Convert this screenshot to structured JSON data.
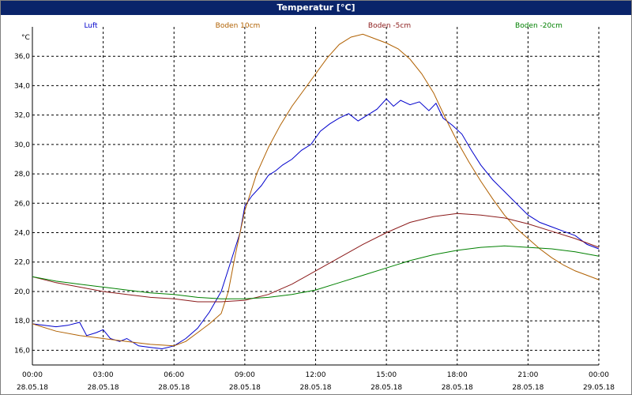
{
  "window": {
    "title": "Temperatur [°C]"
  },
  "chart_data": {
    "type": "line",
    "unit_label": "°C",
    "ylim": [
      15,
      38
    ],
    "xlim": [
      0,
      24
    ],
    "grid": true,
    "legend_placement": "top",
    "y_ticks": [
      "16,0",
      "18,0",
      "20,0",
      "22,0",
      "24,0",
      "26,0",
      "28,0",
      "30,0",
      "32,0",
      "34,0",
      "36,0"
    ],
    "x_ticks": [
      {
        "time": "00:00",
        "date": "28.05.18"
      },
      {
        "time": "03:00",
        "date": "28.05.18"
      },
      {
        "time": "06:00",
        "date": "28.05.18"
      },
      {
        "time": "09:00",
        "date": "28.05.18"
      },
      {
        "time": "12:00",
        "date": "28.05.18"
      },
      {
        "time": "15:00",
        "date": "28.05.18"
      },
      {
        "time": "18:00",
        "date": "28.05.18"
      },
      {
        "time": "21:00",
        "date": "28.05.18"
      },
      {
        "time": "00:00",
        "date": "29.05.18"
      }
    ],
    "series": [
      {
        "name": "Luft",
        "color": "#0000cc",
        "points": [
          [
            0,
            17.8
          ],
          [
            0.5,
            17.7
          ],
          [
            1,
            17.6
          ],
          [
            1.5,
            17.7
          ],
          [
            2,
            17.9
          ],
          [
            2.3,
            17.0
          ],
          [
            2.7,
            17.2
          ],
          [
            3,
            17.4
          ],
          [
            3.3,
            16.8
          ],
          [
            3.7,
            16.6
          ],
          [
            4,
            16.8
          ],
          [
            4.5,
            16.3
          ],
          [
            5,
            16.2
          ],
          [
            5.5,
            16.1
          ],
          [
            6,
            16.3
          ],
          [
            6.5,
            16.8
          ],
          [
            7,
            17.5
          ],
          [
            7.5,
            18.6
          ],
          [
            8,
            20.0
          ],
          [
            8.3,
            21.5
          ],
          [
            8.6,
            23.0
          ],
          [
            8.8,
            24.0
          ],
          [
            9,
            25.8
          ],
          [
            9.3,
            26.5
          ],
          [
            9.7,
            27.2
          ],
          [
            10,
            27.9
          ],
          [
            10.3,
            28.2
          ],
          [
            10.6,
            28.6
          ],
          [
            11,
            29.0
          ],
          [
            11.4,
            29.6
          ],
          [
            11.8,
            30.0
          ],
          [
            12.2,
            30.9
          ],
          [
            12.6,
            31.4
          ],
          [
            13,
            31.8
          ],
          [
            13.4,
            32.1
          ],
          [
            13.8,
            31.6
          ],
          [
            14.2,
            32.0
          ],
          [
            14.6,
            32.4
          ],
          [
            15,
            33.1
          ],
          [
            15.3,
            32.6
          ],
          [
            15.6,
            33.0
          ],
          [
            16,
            32.7
          ],
          [
            16.4,
            32.9
          ],
          [
            16.8,
            32.3
          ],
          [
            17.1,
            32.8
          ],
          [
            17.4,
            31.8
          ],
          [
            17.8,
            31.3
          ],
          [
            18.2,
            30.7
          ],
          [
            18.6,
            29.6
          ],
          [
            19,
            28.6
          ],
          [
            19.5,
            27.6
          ],
          [
            20,
            26.8
          ],
          [
            20.5,
            26.0
          ],
          [
            21,
            25.2
          ],
          [
            21.5,
            24.7
          ],
          [
            22,
            24.4
          ],
          [
            22.5,
            24.1
          ],
          [
            23,
            23.8
          ],
          [
            23.5,
            23.2
          ],
          [
            24,
            22.9
          ]
        ]
      },
      {
        "name": "Boden 10cm",
        "color": "#b06000",
        "points": [
          [
            0,
            17.8
          ],
          [
            1,
            17.3
          ],
          [
            2,
            17.0
          ],
          [
            3,
            16.8
          ],
          [
            4,
            16.6
          ],
          [
            5,
            16.4
          ],
          [
            6,
            16.3
          ],
          [
            6.5,
            16.6
          ],
          [
            7,
            17.2
          ],
          [
            7.5,
            17.8
          ],
          [
            8,
            18.5
          ],
          [
            8.3,
            20.0
          ],
          [
            8.6,
            22.5
          ],
          [
            9,
            25.5
          ],
          [
            9.5,
            28.0
          ],
          [
            10,
            29.8
          ],
          [
            10.5,
            31.3
          ],
          [
            11,
            32.6
          ],
          [
            11.5,
            33.7
          ],
          [
            12,
            34.8
          ],
          [
            12.5,
            35.9
          ],
          [
            13,
            36.8
          ],
          [
            13.5,
            37.3
          ],
          [
            14,
            37.5
          ],
          [
            14.5,
            37.2
          ],
          [
            15,
            36.9
          ],
          [
            15.5,
            36.5
          ],
          [
            16,
            35.8
          ],
          [
            16.5,
            34.8
          ],
          [
            17,
            33.5
          ],
          [
            17.5,
            31.8
          ],
          [
            18,
            30.2
          ],
          [
            18.5,
            28.8
          ],
          [
            19,
            27.5
          ],
          [
            19.5,
            26.3
          ],
          [
            20,
            25.2
          ],
          [
            20.5,
            24.3
          ],
          [
            21,
            23.6
          ],
          [
            21.5,
            22.9
          ],
          [
            22,
            22.3
          ],
          [
            22.5,
            21.8
          ],
          [
            23,
            21.4
          ],
          [
            23.5,
            21.1
          ],
          [
            24,
            20.8
          ]
        ]
      },
      {
        "name": "Boden -5cm",
        "color": "#8b1a1a",
        "points": [
          [
            0,
            21.0
          ],
          [
            1,
            20.6
          ],
          [
            2,
            20.3
          ],
          [
            3,
            20.0
          ],
          [
            4,
            19.8
          ],
          [
            5,
            19.6
          ],
          [
            6,
            19.5
          ],
          [
            7,
            19.3
          ],
          [
            8,
            19.3
          ],
          [
            9,
            19.4
          ],
          [
            10,
            19.8
          ],
          [
            11,
            20.5
          ],
          [
            12,
            21.4
          ],
          [
            13,
            22.3
          ],
          [
            14,
            23.2
          ],
          [
            15,
            24.0
          ],
          [
            16,
            24.7
          ],
          [
            17,
            25.1
          ],
          [
            18,
            25.3
          ],
          [
            19,
            25.2
          ],
          [
            20,
            25.0
          ],
          [
            21,
            24.6
          ],
          [
            22,
            24.1
          ],
          [
            23,
            23.6
          ],
          [
            24,
            23.0
          ]
        ]
      },
      {
        "name": "Boden -20cm",
        "color": "#008000",
        "points": [
          [
            0,
            21.0
          ],
          [
            1,
            20.7
          ],
          [
            2,
            20.5
          ],
          [
            3,
            20.3
          ],
          [
            4,
            20.1
          ],
          [
            5,
            19.9
          ],
          [
            6,
            19.8
          ],
          [
            7,
            19.6
          ],
          [
            8,
            19.5
          ],
          [
            9,
            19.5
          ],
          [
            10,
            19.6
          ],
          [
            11,
            19.8
          ],
          [
            12,
            20.1
          ],
          [
            13,
            20.6
          ],
          [
            14,
            21.1
          ],
          [
            15,
            21.6
          ],
          [
            16,
            22.1
          ],
          [
            17,
            22.5
          ],
          [
            18,
            22.8
          ],
          [
            19,
            23.0
          ],
          [
            20,
            23.1
          ],
          [
            21,
            23.0
          ],
          [
            22,
            22.9
          ],
          [
            23,
            22.7
          ],
          [
            24,
            22.4
          ]
        ]
      }
    ]
  }
}
